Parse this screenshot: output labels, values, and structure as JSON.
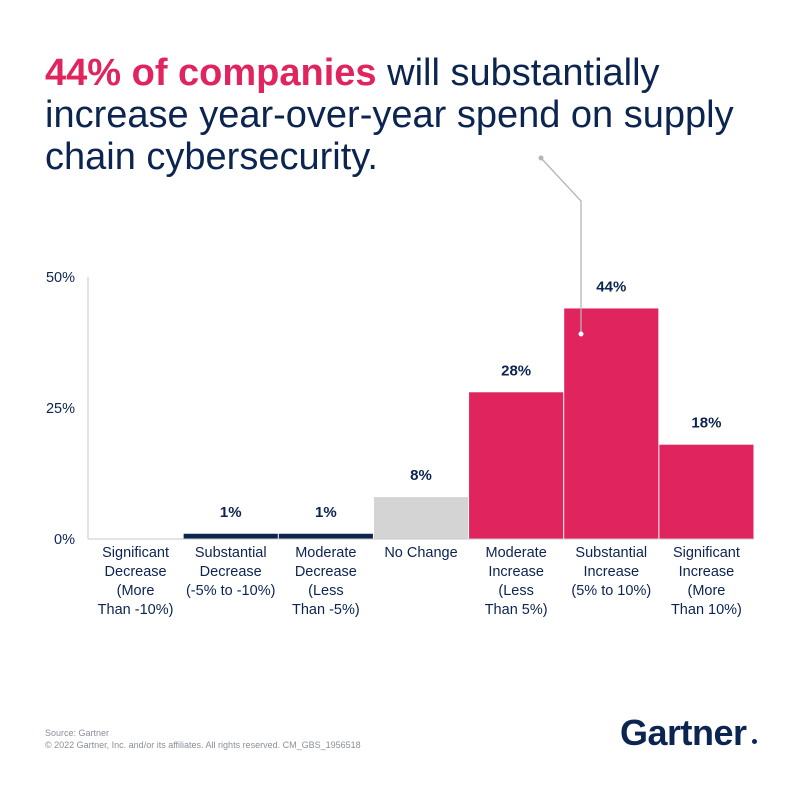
{
  "headline": {
    "highlight": "44% of companies",
    "rest": " will substantially increase year-over-year spend on supply chain cybersecurity."
  },
  "colors": {
    "navy": "#0b2450",
    "magenta": "#e0245e",
    "gray": "#d4d4d4"
  },
  "chart_data": {
    "type": "bar",
    "title": "44% of companies will substantially increase year-over-year spend on supply chain cybersecurity.",
    "xlabel": "",
    "ylabel": "",
    "ylim": [
      0,
      50
    ],
    "yticks": [
      "0%",
      "25%",
      "50%"
    ],
    "ytick_values": [
      0,
      25,
      50
    ],
    "categories": [
      "Significant Decrease (More Than -10%)",
      "Substantial Decrease (-5% to -10%)",
      "Moderate Decrease (Less Than -5%)",
      "No Change",
      "Moderate Increase (Less Than 5%)",
      "Substantial Increase (5% to 10%)",
      "Significant Increase (More Than 10%)"
    ],
    "category_lines": [
      [
        "Significant",
        "Decrease",
        "(More",
        "Than -10%)"
      ],
      [
        "Substantial",
        "Decrease",
        "(-5% to -10%)"
      ],
      [
        "Moderate",
        "Decrease",
        "(Less",
        "Than -5%)"
      ],
      [
        "No Change"
      ],
      [
        "Moderate",
        "Increase",
        "(Less",
        "Than 5%)"
      ],
      [
        "Substantial",
        "Increase",
        "(5% to 10%)"
      ],
      [
        "Significant",
        "Increase",
        "(More",
        "Than 10%)"
      ]
    ],
    "values": [
      0,
      1,
      1,
      8,
      28,
      44,
      18
    ],
    "data_labels": [
      "",
      "1%",
      "1%",
      "8%",
      "28%",
      "44%",
      "18%"
    ],
    "bar_colors": [
      "#0b2450",
      "#0b2450",
      "#0b2450",
      "#d4d4d4",
      "#e0245e",
      "#e0245e",
      "#e0245e"
    ],
    "grid": false,
    "callout_target": "Substantial Increase (5% to 10%)"
  },
  "footer": {
    "source": "Source: Gartner",
    "copyright": "© 2022 Gartner, Inc. and/or its affiliates. All rights reserved. CM_GBS_1956518",
    "logo": "Gartner"
  }
}
